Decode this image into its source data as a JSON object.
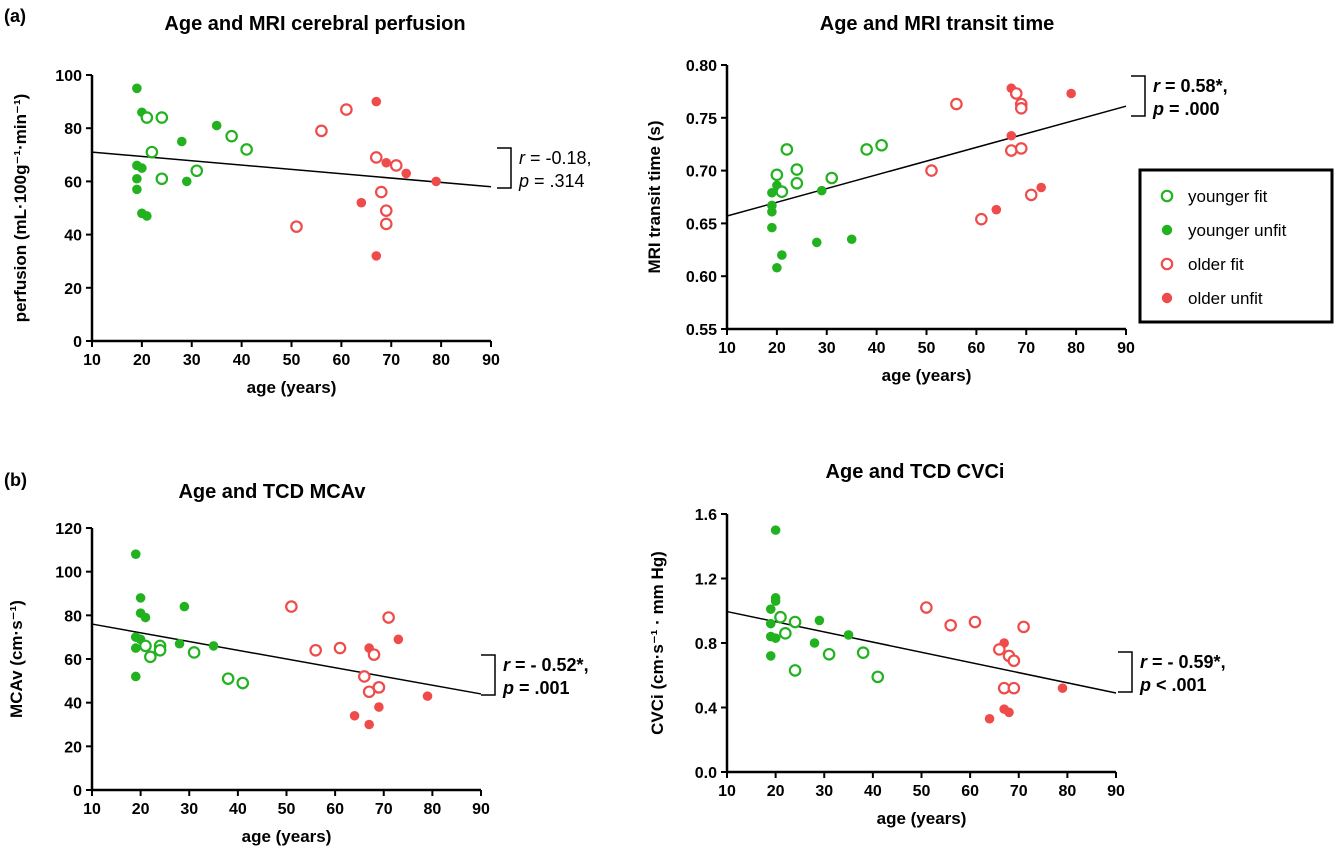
{
  "panel_labels": {
    "a": "(a)",
    "b": "(b)"
  },
  "legend": {
    "entries": [
      {
        "key": "younger_fit",
        "label": "younger fit",
        "color": "#22b21f",
        "filled": false
      },
      {
        "key": "younger_unfit",
        "label": "younger unfit",
        "color": "#22b21f",
        "filled": true
      },
      {
        "key": "older_fit",
        "label": "older fit",
        "color": "#ef4b4b",
        "filled": false
      },
      {
        "key": "older_unfit",
        "label": "older unfit",
        "color": "#ef4b4b",
        "filled": true
      }
    ]
  },
  "colors": {
    "younger": "#22b21f",
    "older": "#ef4b4b",
    "axis": "#000000",
    "regression": "#000000"
  },
  "chart_data": [
    {
      "id": "perfusion",
      "type": "scatter",
      "title": "Age and MRI cerebral perfusion",
      "xlabel": "age (years)",
      "ylabel": "perfusion (mL·100g⁻¹·min⁻¹)",
      "xlim": [
        10,
        90
      ],
      "ylim": [
        0,
        100
      ],
      "xticks": [
        10,
        20,
        30,
        40,
        50,
        60,
        70,
        80,
        90
      ],
      "yticks": [
        0,
        20,
        40,
        60,
        80,
        100
      ],
      "ytick_decimals": 0,
      "regression": {
        "x": [
          10,
          90
        ],
        "y": [
          71,
          58
        ]
      },
      "stats": {
        "r_label": "r",
        "r_text": " = -0.18,",
        "p_label": "p",
        "p_text": " = .314",
        "bold": false
      },
      "series": {
        "younger_fit": [
          [
            21,
            84
          ],
          [
            22,
            71
          ],
          [
            24,
            84
          ],
          [
            24,
            61
          ],
          [
            31,
            64
          ],
          [
            38,
            77
          ],
          [
            41,
            72
          ]
        ],
        "younger_unfit": [
          [
            19,
            95
          ],
          [
            19,
            66
          ],
          [
            19,
            61
          ],
          [
            19,
            57
          ],
          [
            20,
            86
          ],
          [
            20,
            65
          ],
          [
            20,
            48
          ],
          [
            21,
            47
          ],
          [
            28,
            75
          ],
          [
            29,
            60
          ],
          [
            35,
            81
          ]
        ],
        "older_fit": [
          [
            51,
            43
          ],
          [
            56,
            79
          ],
          [
            61,
            87
          ],
          [
            67,
            69
          ],
          [
            68,
            56
          ],
          [
            69,
            49
          ],
          [
            69,
            44
          ],
          [
            71,
            66
          ]
        ],
        "older_unfit": [
          [
            64,
            52
          ],
          [
            67,
            90
          ],
          [
            67,
            32
          ],
          [
            69,
            67
          ],
          [
            73,
            63
          ],
          [
            79,
            60
          ]
        ]
      }
    },
    {
      "id": "transit",
      "type": "scatter",
      "title": "Age and MRI transit time",
      "xlabel": "age (years)",
      "ylabel": "MRI transit time (s)",
      "xlim": [
        10,
        90
      ],
      "ylim": [
        0.55,
        0.8
      ],
      "xticks": [
        10,
        20,
        30,
        40,
        50,
        60,
        70,
        80,
        90
      ],
      "yticks": [
        0.55,
        0.6,
        0.65,
        0.7,
        0.75,
        0.8
      ],
      "ytick_decimals": 2,
      "regression": {
        "x": [
          10,
          90
        ],
        "y": [
          0.657,
          0.761
        ]
      },
      "stats": {
        "r_label": "r",
        "r_text": " = 0.58*,",
        "p_label": "p",
        "p_text": " = .000",
        "bold": true
      },
      "series": {
        "younger_fit": [
          [
            20,
            0.696
          ],
          [
            21,
            0.68
          ],
          [
            22,
            0.72
          ],
          [
            24,
            0.701
          ],
          [
            24,
            0.688
          ],
          [
            31,
            0.693
          ],
          [
            38,
            0.72
          ],
          [
            41,
            0.724
          ]
        ],
        "younger_unfit": [
          [
            19,
            0.679
          ],
          [
            19,
            0.667
          ],
          [
            19,
            0.661
          ],
          [
            19,
            0.646
          ],
          [
            20,
            0.686
          ],
          [
            20,
            0.608
          ],
          [
            21,
            0.62
          ],
          [
            28,
            0.632
          ],
          [
            29,
            0.681
          ],
          [
            35,
            0.635
          ]
        ],
        "older_fit": [
          [
            51,
            0.7
          ],
          [
            56,
            0.763
          ],
          [
            61,
            0.654
          ],
          [
            67,
            0.719
          ],
          [
            68,
            0.773
          ],
          [
            69,
            0.763
          ],
          [
            69,
            0.759
          ],
          [
            69,
            0.721
          ],
          [
            71,
            0.677
          ]
        ],
        "older_unfit": [
          [
            64,
            0.663
          ],
          [
            67,
            0.778
          ],
          [
            67,
            0.733
          ],
          [
            73,
            0.684
          ],
          [
            79,
            0.773
          ]
        ]
      }
    },
    {
      "id": "mcav",
      "type": "scatter",
      "title": "Age and TCD MCAv",
      "xlabel": "age (years)",
      "ylabel": "MCAv (cm·s⁻¹)",
      "xlim": [
        10,
        90
      ],
      "ylim": [
        0,
        120
      ],
      "xticks": [
        10,
        20,
        30,
        40,
        50,
        60,
        70,
        80,
        90
      ],
      "yticks": [
        0,
        20,
        40,
        60,
        80,
        100,
        120
      ],
      "ytick_decimals": 0,
      "regression": {
        "x": [
          10,
          90
        ],
        "y": [
          76,
          44
        ]
      },
      "stats": {
        "r_label": "r",
        "r_text": " = - 0.52*,",
        "p_label": "p",
        "p_text": " = .001",
        "bold": true
      },
      "series": {
        "younger_fit": [
          [
            21,
            66
          ],
          [
            22,
            61
          ],
          [
            24,
            66
          ],
          [
            24,
            64
          ],
          [
            31,
            63
          ],
          [
            38,
            51
          ],
          [
            41,
            49
          ]
        ],
        "younger_unfit": [
          [
            19,
            108
          ],
          [
            19,
            70
          ],
          [
            19,
            65
          ],
          [
            19,
            52
          ],
          [
            20,
            88
          ],
          [
            20,
            81
          ],
          [
            20,
            69
          ],
          [
            21,
            79
          ],
          [
            28,
            67
          ],
          [
            29,
            84
          ],
          [
            35,
            66
          ]
        ],
        "older_fit": [
          [
            51,
            84
          ],
          [
            56,
            64
          ],
          [
            61,
            65
          ],
          [
            66,
            52
          ],
          [
            67,
            45
          ],
          [
            68,
            62
          ],
          [
            69,
            47
          ],
          [
            69,
            47
          ],
          [
            71,
            79
          ]
        ],
        "older_unfit": [
          [
            64,
            34
          ],
          [
            67,
            30
          ],
          [
            67,
            65
          ],
          [
            69,
            38
          ],
          [
            73,
            69
          ],
          [
            79,
            43
          ]
        ]
      }
    },
    {
      "id": "cvci",
      "type": "scatter",
      "title": "Age and TCD CVCi",
      "xlabel": "age (years)",
      "ylabel": "CVCi (cm·s⁻¹ · mm Hg)",
      "xlim": [
        10,
        90
      ],
      "ylim": [
        0,
        1.6
      ],
      "xticks": [
        10,
        20,
        30,
        40,
        50,
        60,
        70,
        80,
        90
      ],
      "yticks": [
        0,
        0.4,
        0.8,
        1.2,
        1.6
      ],
      "ytick_decimals": 1,
      "regression": {
        "x": [
          10,
          90
        ],
        "y": [
          0.995,
          0.49
        ]
      },
      "stats": {
        "r_label": "r",
        "r_text": " = - 0.59*,",
        "p_label": "p",
        "p_text": " < .001",
        "bold": true
      },
      "series": {
        "younger_fit": [
          [
            21,
            0.96
          ],
          [
            22,
            0.86
          ],
          [
            24,
            0.93
          ],
          [
            24,
            0.63
          ],
          [
            31,
            0.73
          ],
          [
            38,
            0.74
          ],
          [
            41,
            0.59
          ]
        ],
        "younger_unfit": [
          [
            19,
            1.01
          ],
          [
            19,
            0.92
          ],
          [
            19,
            0.84
          ],
          [
            19,
            0.72
          ],
          [
            20,
            1.5
          ],
          [
            20,
            1.08
          ],
          [
            20,
            1.06
          ],
          [
            20,
            0.83
          ],
          [
            28,
            0.8
          ],
          [
            29,
            0.94
          ],
          [
            35,
            0.85
          ]
        ],
        "older_fit": [
          [
            51,
            1.02
          ],
          [
            56,
            0.91
          ],
          [
            61,
            0.93
          ],
          [
            66,
            0.76
          ],
          [
            67,
            0.52
          ],
          [
            68,
            0.72
          ],
          [
            69,
            0.69
          ],
          [
            69,
            0.52
          ],
          [
            71,
            0.9
          ]
        ],
        "older_unfit": [
          [
            64,
            0.33
          ],
          [
            67,
            0.8
          ],
          [
            67,
            0.39
          ],
          [
            68,
            0.37
          ],
          [
            79,
            0.52
          ]
        ]
      }
    }
  ]
}
